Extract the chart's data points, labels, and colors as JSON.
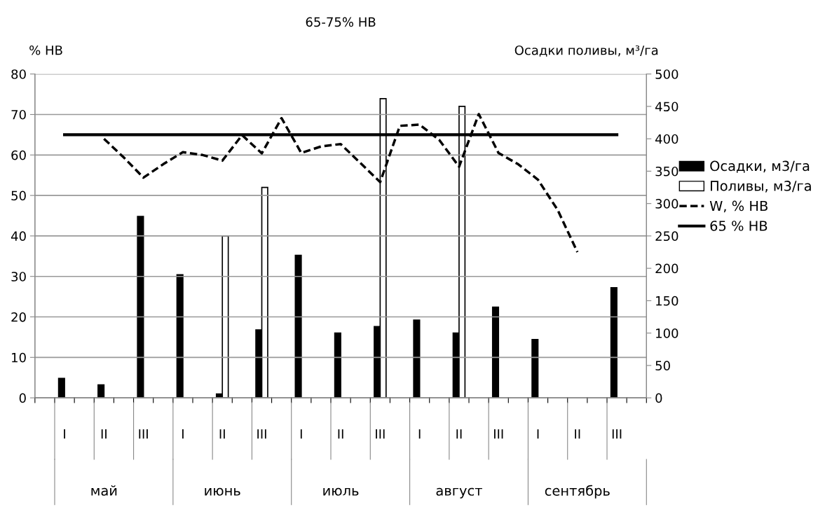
{
  "chart_data": {
    "type": "bar",
    "title": "65-75% НВ",
    "ylabel": "% НВ",
    "y2label": "Осадки поливы, м³/га",
    "categories": [
      null,
      "I",
      null,
      "II",
      null,
      "III",
      null,
      "I",
      null,
      "II",
      null,
      "III",
      null,
      "I",
      null,
      "II",
      null,
      "III",
      null,
      "I",
      null,
      "II",
      null,
      "III",
      null,
      "I",
      null,
      "II",
      null,
      "III",
      null
    ],
    "annotations": [
      "май",
      "июнь",
      "июль",
      "август",
      "сентябрь"
    ],
    "series": [
      {
        "name": "Осадки, м3/га",
        "axis": "y2",
        "color": "#000000",
        "values": [
          null,
          30,
          null,
          20,
          null,
          280,
          null,
          190,
          null,
          6,
          null,
          105,
          null,
          220,
          null,
          100,
          null,
          110,
          null,
          120,
          null,
          100,
          null,
          140,
          null,
          90,
          null,
          null,
          null,
          170,
          null
        ]
      },
      {
        "name": "Поливы, м3/га",
        "axis": "y2",
        "color": "#ffffff",
        "values": [
          null,
          null,
          null,
          null,
          null,
          null,
          null,
          null,
          null,
          250,
          null,
          325,
          null,
          null,
          null,
          null,
          null,
          462,
          null,
          null,
          null,
          450,
          null,
          null,
          null,
          null,
          null,
          null,
          null,
          null,
          null
        ]
      },
      {
        "name": "W, % НВ",
        "type": "line",
        "line_style": "dashed",
        "color": "#000000",
        "values": [
          null,
          null,
          null,
          64.0,
          59.4,
          54.4,
          57.7,
          60.7,
          60.0,
          58.6,
          64.9,
          60.4,
          69.1,
          60.5,
          62.1,
          62.7,
          58.0,
          53.3,
          67.2,
          67.5,
          63.7,
          57.1,
          70.1,
          60.5,
          57.7,
          53.9,
          46.4,
          36.0,
          null,
          null,
          null
        ]
      },
      {
        "name": "65 % НВ",
        "type": "line",
        "line_style": "solid",
        "color": "#000000",
        "values": [
          null,
          65,
          65,
          65,
          65,
          65,
          65,
          65,
          65,
          65,
          65,
          65,
          65,
          65,
          65,
          65,
          65,
          65,
          65,
          65,
          65,
          65,
          65,
          65,
          65,
          65,
          65,
          65,
          65,
          65,
          null
        ]
      }
    ],
    "ylim": [
      0,
      80
    ],
    "yticks": [
      0,
      10,
      20,
      30,
      40,
      50,
      60,
      70,
      80
    ],
    "y2lim": [
      0,
      500
    ],
    "y2ticks": [
      0,
      50,
      100,
      150,
      200,
      250,
      300,
      350,
      400,
      450,
      500
    ],
    "grid": "y",
    "legend": "right"
  }
}
